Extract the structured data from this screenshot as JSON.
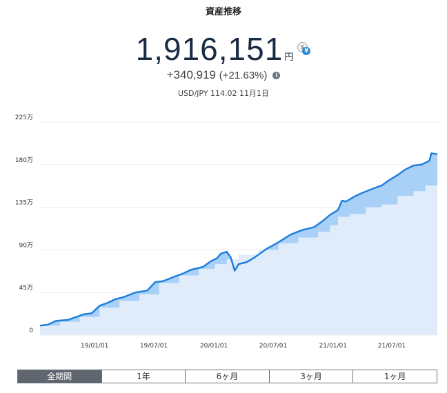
{
  "header": {
    "title": "資産推移",
    "total_value": "1,916,151",
    "total_unit": "円",
    "currency_icon_primary": "$",
    "currency_icon_secondary": "¥",
    "change_value": "+340,919",
    "change_percent": "(+21.63%)",
    "info_icon": "i",
    "exchange_rate": "USD/JPY 114.02 11月1日"
  },
  "tabs": [
    {
      "label": "全期間",
      "active": true
    },
    {
      "label": "1年",
      "active": false
    },
    {
      "label": "6ヶ月",
      "active": false
    },
    {
      "label": "3ヶ月",
      "active": false
    },
    {
      "label": "1ヶ月",
      "active": false
    }
  ],
  "colors": {
    "line": "#1f7fdc",
    "gain_fill": "#a9d1f7",
    "invested_fill": "#e1ecfb",
    "grid": "#ececec",
    "active_tab": "#5f6670"
  },
  "chart_data": {
    "type": "area",
    "x_tick_labels": [
      "19/01/01",
      "19/07/01",
      "20/01/01",
      "20/07/01",
      "21/01/01",
      "21/07/01"
    ],
    "y_tick_labels": [
      "0",
      "45万",
      "90万",
      "135万",
      "180万",
      "225万"
    ],
    "ylim": [
      0,
      225
    ],
    "y_unit": "万円",
    "series": [
      {
        "role": "total",
        "points": [
          [
            0.0,
            10
          ],
          [
            0.02,
            11
          ],
          [
            0.04,
            15
          ],
          [
            0.07,
            16
          ],
          [
            0.09,
            19
          ],
          [
            0.11,
            22
          ],
          [
            0.13,
            23
          ],
          [
            0.15,
            31
          ],
          [
            0.17,
            34
          ],
          [
            0.19,
            38
          ],
          [
            0.21,
            40
          ],
          [
            0.24,
            45
          ],
          [
            0.27,
            47
          ],
          [
            0.29,
            56
          ],
          [
            0.31,
            57
          ],
          [
            0.34,
            62
          ],
          [
            0.36,
            65
          ],
          [
            0.38,
            69
          ],
          [
            0.41,
            72
          ],
          [
            0.43,
            78
          ],
          [
            0.445,
            81
          ],
          [
            0.455,
            86
          ],
          [
            0.47,
            88
          ],
          [
            0.48,
            82
          ],
          [
            0.49,
            68
          ],
          [
            0.5,
            75
          ],
          [
            0.52,
            77
          ],
          [
            0.54,
            82
          ],
          [
            0.57,
            91
          ],
          [
            0.6,
            98
          ],
          [
            0.63,
            106
          ],
          [
            0.66,
            111
          ],
          [
            0.69,
            114
          ],
          [
            0.71,
            120
          ],
          [
            0.73,
            127
          ],
          [
            0.75,
            132
          ],
          [
            0.76,
            142
          ],
          [
            0.77,
            141
          ],
          [
            0.79,
            146
          ],
          [
            0.81,
            150
          ],
          [
            0.84,
            155
          ],
          [
            0.86,
            158
          ],
          [
            0.88,
            164
          ],
          [
            0.9,
            169
          ],
          [
            0.92,
            175
          ],
          [
            0.94,
            179
          ],
          [
            0.96,
            180
          ],
          [
            0.98,
            184
          ],
          [
            0.985,
            192
          ],
          [
            1.0,
            191
          ]
        ]
      },
      {
        "role": "invested",
        "points": [
          [
            0.0,
            10
          ],
          [
            0.05,
            14
          ],
          [
            0.1,
            19
          ],
          [
            0.15,
            29
          ],
          [
            0.2,
            36
          ],
          [
            0.25,
            43
          ],
          [
            0.3,
            55
          ],
          [
            0.35,
            63
          ],
          [
            0.4,
            70
          ],
          [
            0.44,
            75
          ],
          [
            0.47,
            80
          ],
          [
            0.5,
            85
          ],
          [
            0.55,
            90
          ],
          [
            0.6,
            97
          ],
          [
            0.65,
            103
          ],
          [
            0.7,
            109
          ],
          [
            0.73,
            116
          ],
          [
            0.75,
            125
          ],
          [
            0.78,
            128
          ],
          [
            0.82,
            135
          ],
          [
            0.86,
            138
          ],
          [
            0.9,
            147
          ],
          [
            0.94,
            152
          ],
          [
            0.97,
            158
          ],
          [
            1.0,
            160
          ]
        ]
      }
    ]
  }
}
